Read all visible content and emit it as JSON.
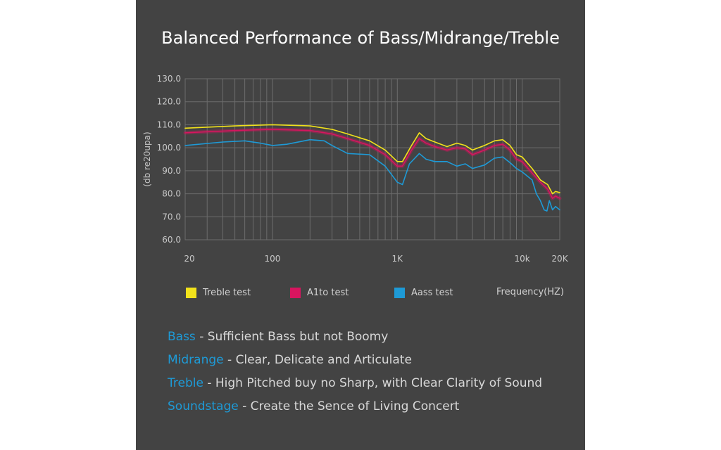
{
  "chart_data": {
    "type": "line",
    "title": "Balanced Performance of Bass/Midrange/Treble",
    "ylabel": "(db re20upa)",
    "xlabel": "Frequency(HZ)",
    "x_scale": "log",
    "xlim": [
      20,
      20000
    ],
    "ylim": [
      60,
      130
    ],
    "x_tick_values": [
      20,
      100,
      1000,
      10000,
      20000
    ],
    "x_tick_labels": [
      "20",
      "100",
      "1K",
      "10k",
      "20K"
    ],
    "y_tick_values": [
      60,
      70,
      80,
      90,
      100,
      110,
      120,
      130
    ],
    "y_tick_labels": [
      "60.0",
      "70.0",
      "80.0",
      "90.0",
      "100.0",
      "110.0",
      "120.0",
      "130.0"
    ],
    "grid": true,
    "series": [
      {
        "name": "Treble test",
        "color": "#f2e21b",
        "points": [
          [
            20,
            108.5
          ],
          [
            50,
            109.5
          ],
          [
            100,
            110
          ],
          [
            200,
            109.5
          ],
          [
            300,
            108
          ],
          [
            400,
            106
          ],
          [
            600,
            103
          ],
          [
            800,
            99
          ],
          [
            1000,
            94
          ],
          [
            1100,
            94
          ],
          [
            1300,
            101
          ],
          [
            1500,
            106.5
          ],
          [
            1700,
            104
          ],
          [
            2000,
            102.5
          ],
          [
            2500,
            100.5
          ],
          [
            3000,
            102
          ],
          [
            3500,
            101
          ],
          [
            4000,
            99
          ],
          [
            5000,
            101
          ],
          [
            6000,
            103
          ],
          [
            7000,
            103.5
          ],
          [
            8000,
            101
          ],
          [
            9000,
            97
          ],
          [
            10000,
            96
          ],
          [
            12000,
            91
          ],
          [
            14000,
            86
          ],
          [
            16000,
            84
          ],
          [
            17500,
            80
          ],
          [
            18500,
            81
          ],
          [
            20000,
            80.5
          ]
        ]
      },
      {
        "name": "A1to test",
        "color": "#d8155f",
        "points": [
          [
            20,
            106.5
          ],
          [
            50,
            107.5
          ],
          [
            100,
            108
          ],
          [
            200,
            107.5
          ],
          [
            300,
            106
          ],
          [
            400,
            104
          ],
          [
            600,
            101
          ],
          [
            800,
            97
          ],
          [
            1000,
            92
          ],
          [
            1100,
            92
          ],
          [
            1300,
            99
          ],
          [
            1500,
            104
          ],
          [
            1700,
            102
          ],
          [
            2000,
            100.5
          ],
          [
            2500,
            99
          ],
          [
            3000,
            100
          ],
          [
            3500,
            99.5
          ],
          [
            4000,
            97
          ],
          [
            5000,
            99
          ],
          [
            6000,
            101
          ],
          [
            7000,
            101.5
          ],
          [
            8000,
            99
          ],
          [
            9000,
            95
          ],
          [
            10000,
            94
          ],
          [
            12000,
            89
          ],
          [
            14000,
            85
          ],
          [
            16000,
            82
          ],
          [
            17500,
            78
          ],
          [
            18500,
            79
          ],
          [
            20000,
            78
          ]
        ]
      },
      {
        "name": "Aass test",
        "color": "#1e9ad6",
        "points": [
          [
            20,
            101
          ],
          [
            40,
            102.5
          ],
          [
            60,
            103
          ],
          [
            80,
            102
          ],
          [
            100,
            101
          ],
          [
            130,
            101.5
          ],
          [
            200,
            103.5
          ],
          [
            260,
            103
          ],
          [
            300,
            101
          ],
          [
            400,
            97.5
          ],
          [
            600,
            97
          ],
          [
            800,
            92
          ],
          [
            1000,
            85
          ],
          [
            1100,
            84
          ],
          [
            1250,
            93
          ],
          [
            1500,
            97.5
          ],
          [
            1700,
            95
          ],
          [
            2000,
            94
          ],
          [
            2500,
            94
          ],
          [
            3000,
            92
          ],
          [
            3500,
            93
          ],
          [
            4000,
            91
          ],
          [
            5000,
            92.5
          ],
          [
            6000,
            95.5
          ],
          [
            7000,
            96
          ],
          [
            8000,
            93.5
          ],
          [
            9000,
            91
          ],
          [
            10000,
            89.5
          ],
          [
            12000,
            86
          ],
          [
            13000,
            80
          ],
          [
            14000,
            77
          ],
          [
            15000,
            73
          ],
          [
            15800,
            72.5
          ],
          [
            16500,
            77
          ],
          [
            17500,
            73
          ],
          [
            18500,
            74.5
          ],
          [
            20000,
            73
          ]
        ]
      }
    ]
  },
  "descriptions": [
    {
      "term": "Bass",
      "text": " -  Sufficient Bass but not Boomy"
    },
    {
      "term": "Midrange",
      "text": " - Clear, Delicate and Articulate"
    },
    {
      "term": "Treble",
      "text": " - High Pitched buy no Sharp, with Clear Clarity of Sound"
    },
    {
      "term": "Soundstage",
      "text": " - Create the Sence of Living Concert"
    }
  ]
}
